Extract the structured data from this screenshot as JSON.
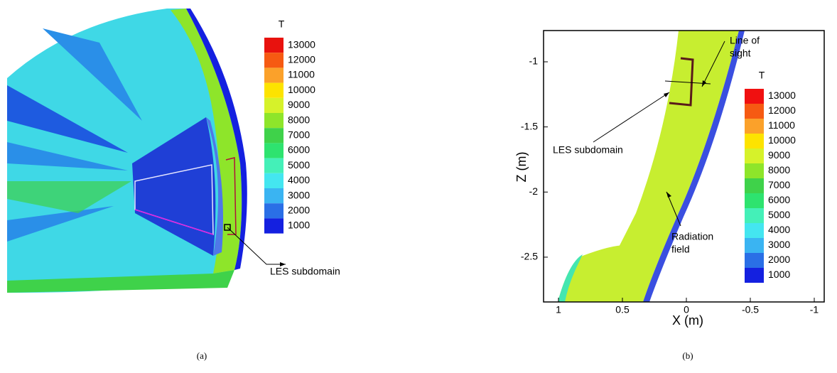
{
  "panels": [
    {
      "caption": "(a)",
      "legend": {
        "title": "T",
        "levels": [
          "13000",
          "12000",
          "11000",
          "10000",
          "9000",
          "8000",
          "7000",
          "6000",
          "5000",
          "4000",
          "3000",
          "2000",
          "1000"
        ],
        "colors": [
          "#e8120e",
          "#f65a12",
          "#fba12a",
          "#fde300",
          "#d6f22a",
          "#8ee52a",
          "#3fd24a",
          "#2ee36f",
          "#44f0b8",
          "#44e6f0",
          "#3ab4f2",
          "#2a6fe6",
          "#1420e0"
        ]
      },
      "annotations": [
        "LES subdomain"
      ]
    },
    {
      "caption": "(b)",
      "x_axis": {
        "label": "X (m)",
        "ticks": [
          1,
          0.5,
          0,
          -0.5,
          -1
        ]
      },
      "y_axis": {
        "label": "Z (m)",
        "ticks": [
          -1,
          -1.5,
          -2,
          -2.5
        ]
      },
      "legend": {
        "title": "T",
        "levels": [
          "13000",
          "12000",
          "11000",
          "10000",
          "9000",
          "8000",
          "7000",
          "6000",
          "5000",
          "4000",
          "3000",
          "2000",
          "1000"
        ],
        "colors": [
          "#f01010",
          "#f65a12",
          "#fba12a",
          "#fde300",
          "#d6f22a",
          "#8ee52a",
          "#3fd24a",
          "#2ee36f",
          "#44f0b8",
          "#44e6f0",
          "#3ab4f2",
          "#2a6fe6",
          "#1420e0"
        ]
      },
      "annotations": {
        "line_of_sight": [
          "Line of",
          "sight"
        ],
        "les": "LES subdomain",
        "radiation": [
          "Radiation",
          "field"
        ]
      }
    }
  ]
}
